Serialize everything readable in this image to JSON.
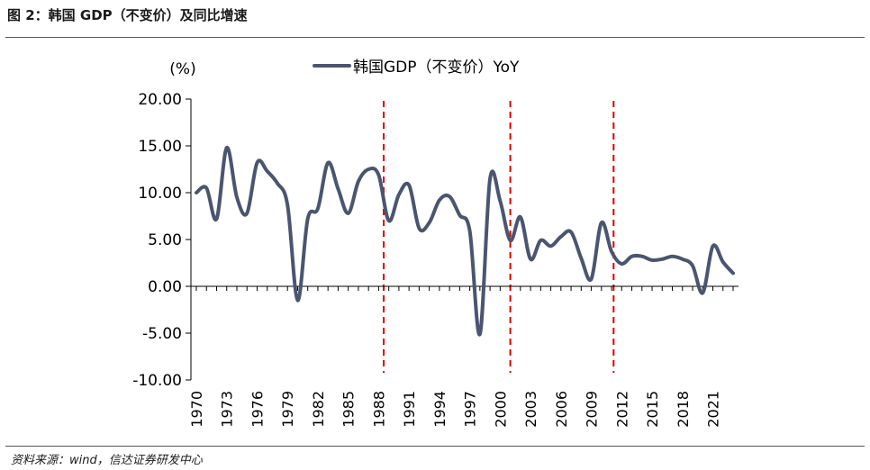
{
  "figure_title": "图 2：韩国 GDP（不变价）及同比增速",
  "source_note": "资料来源：wind，信达证券研发中心",
  "colors": {
    "series": "#4a5570",
    "event_line": "#e00000",
    "axis": "#000000"
  },
  "chart_data": {
    "type": "line",
    "title": "",
    "ylabel": "(%)",
    "xlabel": "",
    "ylim": [
      -10,
      20
    ],
    "xlim": [
      1970,
      2023
    ],
    "yticks": [
      "20.00",
      "15.00",
      "10.00",
      "5.00",
      "0.00",
      "-5.00",
      "-10.00"
    ],
    "xticks": [
      "1970",
      "1973",
      "1976",
      "1979",
      "1982",
      "1985",
      "1988",
      "1991",
      "1994",
      "1997",
      "2000",
      "2003",
      "2006",
      "2009",
      "2012",
      "2015",
      "2018",
      "2021"
    ],
    "grid": false,
    "legend_position": "top-center",
    "event_lines_x": [
      1988.5,
      2001.0,
      2011.2
    ],
    "series": [
      {
        "name": "韩国GDP（不变价）YoY",
        "x": [
          1970,
          1971,
          1972,
          1973,
          1974,
          1975,
          1976,
          1977,
          1978,
          1979,
          1980,
          1981,
          1982,
          1983,
          1984,
          1985,
          1986,
          1987,
          1988,
          1989,
          1990,
          1991,
          1992,
          1993,
          1994,
          1995,
          1996,
          1997,
          1998,
          1999,
          2000,
          2001,
          2002,
          2003,
          2004,
          2005,
          2006,
          2007,
          2008,
          2009,
          2010,
          2011,
          2012,
          2013,
          2014,
          2015,
          2016,
          2017,
          2018,
          2019,
          2020,
          2021,
          2022,
          2023
        ],
        "values": [
          10.0,
          10.5,
          7.2,
          14.8,
          9.5,
          7.8,
          13.2,
          12.3,
          11.0,
          8.7,
          -1.5,
          7.2,
          8.3,
          13.2,
          10.4,
          7.8,
          11.2,
          12.5,
          11.9,
          7.0,
          9.8,
          10.8,
          6.2,
          6.8,
          9.2,
          9.6,
          7.6,
          5.9,
          -5.1,
          11.5,
          9.1,
          4.9,
          7.4,
          2.9,
          4.9,
          4.3,
          5.3,
          5.8,
          3.0,
          0.8,
          6.8,
          3.7,
          2.4,
          3.2,
          3.2,
          2.8,
          2.9,
          3.2,
          2.9,
          2.2,
          -0.7,
          4.3,
          2.6,
          1.4
        ]
      }
    ]
  }
}
